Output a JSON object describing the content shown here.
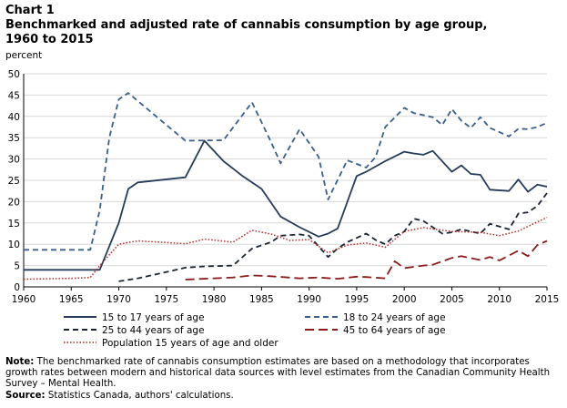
{
  "header": {
    "chart_label": "Chart 1",
    "title": "Benchmarked and adjusted rate of cannabis consumption by age group, 1960 to 2015",
    "y_unit": "percent"
  },
  "footer": {
    "note_label": "Note:",
    "note_text": "The benchmarked rate of cannabis consumption estimates are based on a methodology that incorporates growth rates between modern and historical data sources with level estimates from the Canadian Community Health Survey – Mental Health.",
    "source_label": "Source:",
    "source_text": "Statistics Canada, authors' calculations."
  },
  "chart_data": {
    "type": "line",
    "xlim": [
      1960,
      2015
    ],
    "ylim": [
      0,
      50
    ],
    "x_ticks": [
      1960,
      1965,
      1970,
      1975,
      1980,
      1985,
      1990,
      1995,
      2000,
      2005,
      2010,
      2015
    ],
    "y_ticks": [
      0,
      5,
      10,
      15,
      20,
      25,
      30,
      35,
      40,
      45,
      50
    ],
    "grid": "horizontal",
    "legend_position": "bottom",
    "series": [
      {
        "name": "15 to 17 years of age",
        "color": "#253b5a",
        "dash": "solid",
        "points": [
          [
            1960,
            4
          ],
          [
            1968,
            4
          ],
          [
            1970,
            15
          ],
          [
            1971,
            23
          ],
          [
            1972,
            24.5
          ],
          [
            1977,
            25.7
          ],
          [
            1979,
            34.3
          ],
          [
            1981,
            29.5
          ],
          [
            1983,
            26
          ],
          [
            1985,
            23
          ],
          [
            1987,
            16.5
          ],
          [
            1989,
            14
          ],
          [
            1991,
            11.8
          ],
          [
            1992,
            12.5
          ],
          [
            1993,
            13.7
          ],
          [
            1995,
            26
          ],
          [
            1996,
            27
          ],
          [
            1998,
            29.5
          ],
          [
            2000,
            31.7
          ],
          [
            2001,
            31.3
          ],
          [
            2002,
            31
          ],
          [
            2003,
            31.9
          ],
          [
            2005,
            27
          ],
          [
            2006,
            28.5
          ],
          [
            2007,
            26.5
          ],
          [
            2008,
            26.3
          ],
          [
            2009,
            22.8
          ],
          [
            2011,
            22.5
          ],
          [
            2012,
            25.2
          ],
          [
            2013,
            22.3
          ],
          [
            2014,
            24
          ],
          [
            2015,
            23.5
          ]
        ]
      },
      {
        "name": "18 to 24 years of age",
        "color": "#3a5f8c",
        "dash": "dashed",
        "points": [
          [
            1960,
            8.7
          ],
          [
            1967,
            8.7
          ],
          [
            1968,
            18
          ],
          [
            1969,
            35
          ],
          [
            1970,
            44
          ],
          [
            1971,
            45.5
          ],
          [
            1975,
            38
          ],
          [
            1977,
            34.3
          ],
          [
            1981,
            34.4
          ],
          [
            1984,
            43.3
          ],
          [
            1986,
            34
          ],
          [
            1987,
            29
          ],
          [
            1989,
            37
          ],
          [
            1991,
            30.5
          ],
          [
            1992,
            20.5
          ],
          [
            1994,
            29.7
          ],
          [
            1996,
            28
          ],
          [
            1997,
            30.5
          ],
          [
            1998,
            37.5
          ],
          [
            2000,
            42
          ],
          [
            2001,
            40.8
          ],
          [
            2003,
            39.8
          ],
          [
            2004,
            38
          ],
          [
            2005,
            41.7
          ],
          [
            2006,
            39
          ],
          [
            2007,
            37.3
          ],
          [
            2008,
            39.8
          ],
          [
            2009,
            37.3
          ],
          [
            2011,
            35.3
          ],
          [
            2012,
            37.1
          ],
          [
            2013,
            37
          ],
          [
            2014,
            37.5
          ],
          [
            2015,
            38.5
          ]
        ]
      },
      {
        "name": "25 to 44 years of age",
        "color": "#1a2433",
        "dash": "dashed",
        "points": [
          [
            1970,
            1.3
          ],
          [
            1972,
            2
          ],
          [
            1974,
            3
          ],
          [
            1976,
            4
          ],
          [
            1977,
            4.5
          ],
          [
            1979,
            4.8
          ],
          [
            1982,
            5
          ],
          [
            1984,
            9
          ],
          [
            1986,
            10.5
          ],
          [
            1987,
            12
          ],
          [
            1989,
            12.3
          ],
          [
            1990,
            12
          ],
          [
            1992,
            7
          ],
          [
            1993,
            9
          ],
          [
            1994,
            10.5
          ],
          [
            1996,
            12.5
          ],
          [
            1997,
            11
          ],
          [
            1998,
            10
          ],
          [
            1999,
            12
          ],
          [
            2000,
            13
          ],
          [
            2001,
            16
          ],
          [
            2002,
            15.5
          ],
          [
            2003,
            14
          ],
          [
            2004,
            12.5
          ],
          [
            2005,
            12.8
          ],
          [
            2006,
            13.5
          ],
          [
            2007,
            13
          ],
          [
            2008,
            12.5
          ],
          [
            2009,
            14.8
          ],
          [
            2011,
            13.5
          ],
          [
            2012,
            17.2
          ],
          [
            2013,
            17.5
          ],
          [
            2014,
            19
          ],
          [
            2015,
            22
          ]
        ]
      },
      {
        "name": "45 to 64 years of age",
        "color": "#8c1b1b",
        "dash": "longdash",
        "points": [
          [
            1977,
            1.7
          ],
          [
            1980,
            2
          ],
          [
            1982,
            2.2
          ],
          [
            1984,
            2.7
          ],
          [
            1986,
            2.5
          ],
          [
            1989,
            2
          ],
          [
            1991,
            2.2
          ],
          [
            1993,
            1.9
          ],
          [
            1995,
            2.4
          ],
          [
            1996,
            2.3
          ],
          [
            1998,
            2
          ],
          [
            1999,
            6
          ],
          [
            2000,
            4.4
          ],
          [
            2002,
            5
          ],
          [
            2003,
            5.2
          ],
          [
            2005,
            6.8
          ],
          [
            2006,
            7.2
          ],
          [
            2008,
            6.3
          ],
          [
            2009,
            7
          ],
          [
            2010,
            6.2
          ],
          [
            2012,
            8.5
          ],
          [
            2013,
            7.2
          ],
          [
            2014,
            9.8
          ],
          [
            2015,
            10.8
          ]
        ]
      },
      {
        "name": "Population 15 years of age and older",
        "color": "#b0281f",
        "dash": "dotted",
        "points": [
          [
            1960,
            1.8
          ],
          [
            1965,
            2
          ],
          [
            1967,
            2.2
          ],
          [
            1968,
            5
          ],
          [
            1970,
            10
          ],
          [
            1972,
            10.8
          ],
          [
            1975,
            10.4
          ],
          [
            1977,
            10.1
          ],
          [
            1979,
            11.2
          ],
          [
            1982,
            10.5
          ],
          [
            1984,
            13.3
          ],
          [
            1986,
            12.4
          ],
          [
            1988,
            10.9
          ],
          [
            1990,
            11.1
          ],
          [
            1992,
            8
          ],
          [
            1994,
            9.8
          ],
          [
            1996,
            10.3
          ],
          [
            1998,
            9.3
          ],
          [
            2000,
            13
          ],
          [
            2002,
            13.9
          ],
          [
            2005,
            13
          ],
          [
            2008,
            12.8
          ],
          [
            2010,
            12
          ],
          [
            2012,
            13.1
          ],
          [
            2015,
            16.3
          ]
        ]
      }
    ]
  }
}
